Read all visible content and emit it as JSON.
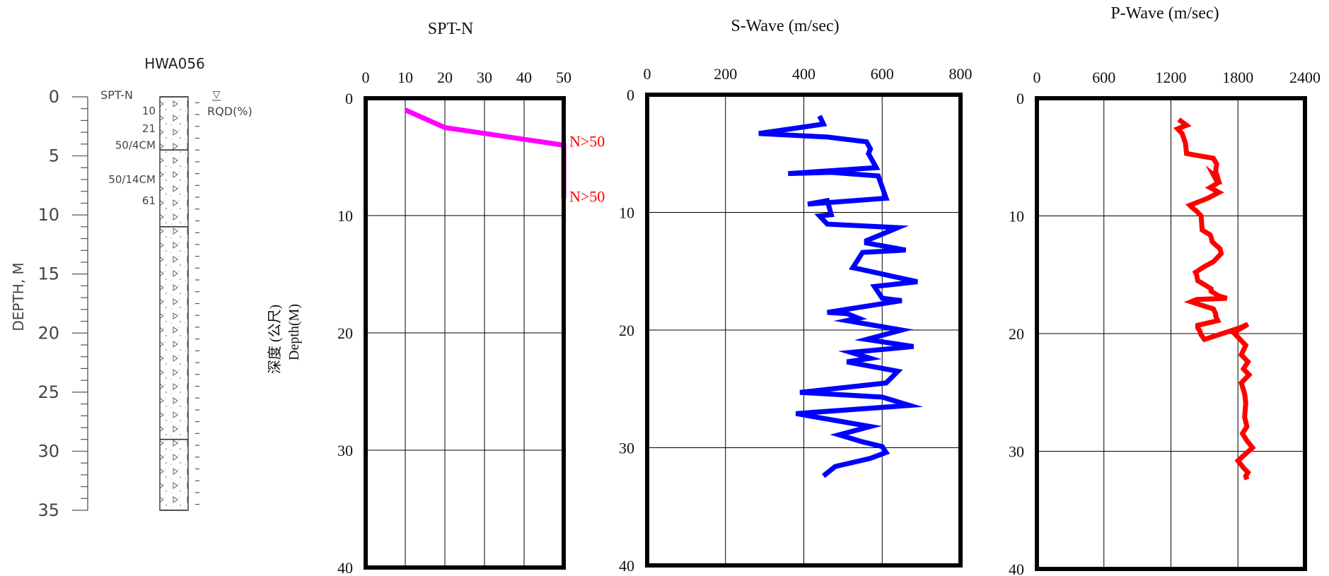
{
  "boring_log": {
    "title": "HWA056",
    "depth_axis_label": "DEPTH, M",
    "depth_ticks": [
      "0",
      "5",
      "10",
      "15",
      "20",
      "25",
      "30",
      "35"
    ],
    "depth_max": 35,
    "column_labels": [
      "SPT-N",
      "RQD(%)"
    ],
    "water_table_symbol": "▽",
    "spt_annotations": [
      {
        "text": "10",
        "depth": 1.2
      },
      {
        "text": "21",
        "depth": 2.7
      },
      {
        "text": "50/4CM",
        "depth": 4.1
      },
      {
        "text": "50/14CM",
        "depth": 7.0
      },
      {
        "text": "61",
        "depth": 8.8
      }
    ],
    "layer_boundaries": [
      0,
      4.5,
      11.0,
      29.0,
      35.0
    ]
  },
  "chart_data": [
    {
      "type": "line",
      "title": "SPT-N",
      "ylabel": "深度 (公尺)",
      "ylabel2": "Depth(M)",
      "xlim": [
        0,
        50
      ],
      "ylim": [
        0,
        40
      ],
      "x_ticks": [
        "0",
        "10",
        "20",
        "30",
        "40",
        "50"
      ],
      "y_ticks": [
        "0",
        "10",
        "20",
        "30",
        "40"
      ],
      "color": "#ff00ff",
      "series": [
        {
          "x": [
            10,
            20,
            50,
            50,
            50
          ],
          "y": [
            1.0,
            2.5,
            4.0,
            5.0,
            8.5
          ]
        }
      ],
      "annotations": [
        {
          "text": "N>50",
          "x": 50,
          "y": 4.0
        },
        {
          "text": "N>50",
          "x": 50,
          "y": 8.7
        }
      ],
      "annotation_color": "#ff0000"
    },
    {
      "type": "line",
      "title": "S-Wave (m/sec)",
      "xlim": [
        0,
        800
      ],
      "ylim": [
        0,
        40
      ],
      "x_ticks": [
        "0",
        "200",
        "400",
        "600",
        "800"
      ],
      "y_ticks": [
        "0",
        "10",
        "20",
        "30",
        "40"
      ],
      "color": "#0000ff",
      "series": [
        {
          "x": [
            440,
            450,
            285,
            460,
            560,
            570,
            565,
            585,
            360,
            470,
            590,
            610,
            410,
            460,
            470,
            440,
            460,
            640,
            560,
            560,
            660,
            550,
            525,
            540,
            690,
            580,
            600,
            650,
            460,
            510,
            540,
            510,
            650,
            560,
            680,
            520,
            570,
            510,
            640,
            610,
            390,
            600,
            670,
            380,
            570,
            490,
            550,
            600,
            610,
            570,
            480,
            450
          ],
          "y": [
            1.8,
            2.5,
            3.3,
            3.6,
            4.0,
            4.6,
            5.0,
            6.2,
            6.7,
            6.6,
            6.9,
            8.8,
            9.3,
            9.0,
            10.2,
            10.3,
            11.0,
            11.3,
            12.4,
            12.6,
            13.2,
            13.4,
            14.7,
            14.8,
            15.9,
            16.3,
            17.3,
            17.5,
            18.5,
            18.6,
            19.0,
            19.2,
            20.0,
            20.8,
            21.4,
            21.9,
            22.4,
            22.7,
            23.5,
            24.5,
            25.3,
            25.7,
            26.4,
            27.1,
            28.2,
            28.9,
            29.5,
            29.9,
            30.4,
            30.9,
            31.6,
            32.4
          ]
        }
      ]
    },
    {
      "type": "line",
      "title": "P-Wave (m/sec)",
      "xlim": [
        0,
        2400
      ],
      "ylim": [
        0,
        40
      ],
      "x_ticks": [
        "0",
        "600",
        "1200",
        "1800",
        "2400"
      ],
      "y_ticks": [
        "0",
        "10",
        "20",
        "30",
        "40"
      ],
      "color": "#ff0000",
      "series": [
        {
          "x": [
            1270,
            1340,
            1260,
            1300,
            1330,
            1340,
            1580,
            1610,
            1600,
            1620,
            1580,
            1620,
            1550,
            1630,
            1530,
            1370,
            1390,
            1430,
            1470,
            1480,
            1550,
            1560,
            1570,
            1640,
            1650,
            1580,
            1500,
            1420,
            1430,
            1440,
            1510,
            1560,
            1560,
            1630,
            1700,
            1430,
            1380,
            1510,
            1580,
            1600,
            1600,
            1620,
            1440,
            1440,
            1460,
            1470,
            1500,
            1820,
            1890,
            1800,
            1760,
            1870,
            1830,
            1890,
            1850,
            1900,
            1830,
            1860,
            1870,
            1860,
            1880,
            1840,
            1880,
            1930,
            1800,
            1850,
            1890,
            1870,
            1880
          ],
          "y": [
            1.8,
            2.3,
            2.6,
            3.0,
            3.8,
            4.7,
            5.1,
            5.6,
            6.2,
            6.8,
            6.5,
            7.2,
            7.6,
            8.0,
            8.5,
            9.1,
            9.3,
            9.6,
            10.0,
            11.2,
            11.6,
            11.8,
            12.2,
            12.8,
            13.2,
            13.9,
            14.3,
            14.8,
            15.0,
            15.5,
            15.9,
            16.2,
            16.4,
            16.8,
            17.0,
            17.1,
            17.3,
            17.7,
            17.9,
            18.3,
            18.5,
            18.9,
            19.3,
            19.5,
            19.8,
            20.1,
            20.5,
            19.5,
            19.2,
            19.7,
            19.9,
            21.0,
            21.8,
            22.4,
            23.0,
            23.5,
            24.2,
            25.1,
            25.9,
            27.1,
            27.9,
            28.5,
            29.1,
            29.7,
            30.8,
            31.4,
            31.8,
            32.1,
            32.4
          ]
        }
      ]
    }
  ]
}
